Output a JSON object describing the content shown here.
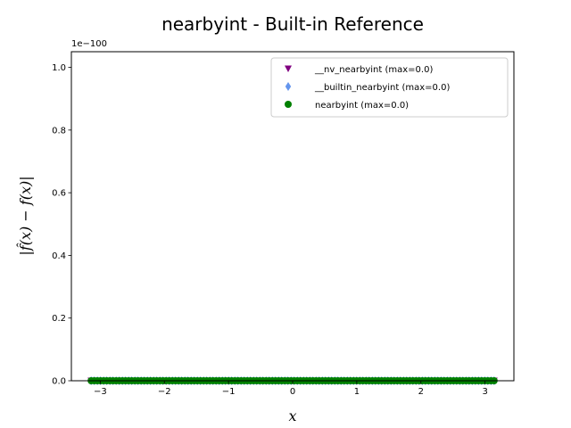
{
  "chart_data": {
    "type": "scatter",
    "title": "nearbyint - Built-in Reference",
    "xlabel": "x",
    "ylabel": "|f̂(x) − f(x)|",
    "offset_label": "1e−100",
    "xlim": [
      -3.45,
      3.45
    ],
    "ylim": [
      0,
      1.05
    ],
    "x_ticks": [
      -3,
      -2,
      -1,
      0,
      1,
      2,
      3
    ],
    "x_tick_labels": [
      "−3",
      "−2",
      "−1",
      "0",
      "1",
      "2",
      "3"
    ],
    "y_ticks": [
      0.0,
      0.2,
      0.4,
      0.6,
      0.8,
      1.0
    ],
    "y_tick_labels": [
      "0.0",
      "0.2",
      "0.4",
      "0.6",
      "0.8",
      "1.0"
    ],
    "x_range": [
      -3.14159,
      3.14159
    ],
    "grid": false,
    "legend_position": "top-right",
    "series": [
      {
        "name": "__nv_nearbyint (max=0.0)",
        "marker": "triangle-down",
        "color": "#800080",
        "y": 0
      },
      {
        "name": "__builtin_nearbyint (max=0.0)",
        "marker": "diamond",
        "color": "#6495ed",
        "y": 0
      },
      {
        "name": "nearbyint (max=0.0)",
        "marker": "circle",
        "color": "#008000",
        "y": 0
      }
    ]
  }
}
